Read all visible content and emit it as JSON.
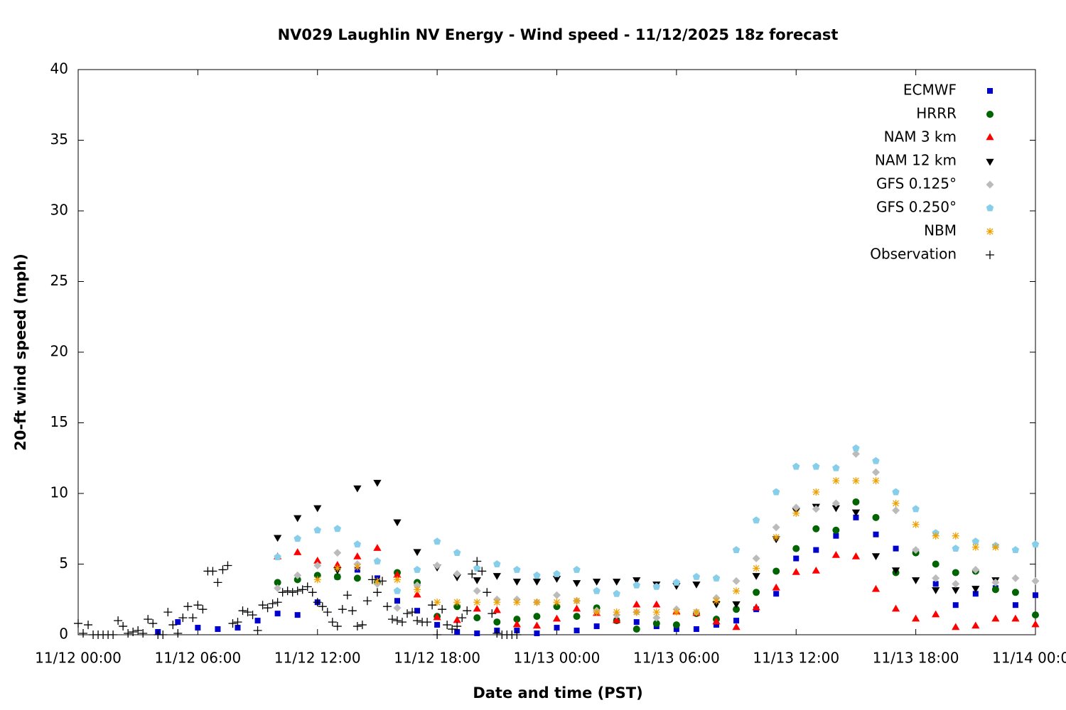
{
  "chart_data": {
    "type": "scatter",
    "title": "NV029 Laughlin NV Energy - Wind speed - 11/12/2025 18z forecast",
    "xlabel": "Date and time (PST)",
    "ylabel": "20-ft wind speed (mph)",
    "xlim": [
      0,
      48
    ],
    "ylim": [
      0,
      40
    ],
    "xticks": [
      {
        "value": 0,
        "label": "11/12 00:00"
      },
      {
        "value": 6,
        "label": "11/12 06:00"
      },
      {
        "value": 12,
        "label": "11/12 12:00"
      },
      {
        "value": 18,
        "label": "11/12 18:00"
      },
      {
        "value": 24,
        "label": "11/13 00:00"
      },
      {
        "value": 30,
        "label": "11/13 06:00"
      },
      {
        "value": 36,
        "label": "11/13 12:00"
      },
      {
        "value": 42,
        "label": "11/13 18:00"
      },
      {
        "value": 48,
        "label": "11/14 00:00"
      }
    ],
    "yticks": [
      0,
      5,
      10,
      15,
      20,
      25,
      30,
      35,
      40
    ],
    "legend": "upper right",
    "series": [
      {
        "name": "ECMWF",
        "color": "#0000cc",
        "marker": "square",
        "x": [
          4,
          5,
          6,
          7,
          8,
          9,
          10,
          11,
          12,
          13,
          14,
          15,
          16,
          17,
          18,
          19,
          20,
          21,
          22,
          23,
          24,
          25,
          26,
          27,
          28,
          29,
          30,
          31,
          32,
          33,
          34,
          35,
          36,
          37,
          38,
          39,
          40,
          41,
          42,
          43,
          44,
          45,
          46,
          47,
          48
        ],
        "values": [
          0.2,
          0.9,
          0.5,
          0.4,
          0.5,
          1.0,
          1.5,
          1.4,
          2.3,
          4.1,
          4.6,
          4.0,
          2.4,
          1.7,
          0.7,
          0.2,
          0.1,
          0.3,
          0.3,
          0.1,
          0.5,
          0.3,
          0.6,
          1.0,
          0.9,
          0.6,
          0.4,
          0.4,
          0.7,
          1.0,
          1.8,
          2.9,
          5.4,
          6.0,
          7.0,
          8.3,
          7.1,
          6.1,
          5.9,
          3.6,
          2.1,
          2.9,
          3.3,
          2.1,
          2.8
        ]
      },
      {
        "name": "HRRR",
        "color": "#006400",
        "marker": "circle",
        "x": [
          10,
          11,
          12,
          13,
          14,
          15,
          16,
          17,
          18,
          19,
          20,
          21,
          22,
          23,
          24,
          25,
          26,
          27,
          28,
          29,
          30,
          31,
          32,
          33,
          34,
          35,
          36,
          37,
          38,
          39,
          40,
          41,
          42,
          43,
          44,
          45,
          46,
          47,
          48
        ],
        "values": [
          3.7,
          3.9,
          4.2,
          4.1,
          4.0,
          3.7,
          4.4,
          3.7,
          1.3,
          2.0,
          1.2,
          0.9,
          1.1,
          1.3,
          2.0,
          1.3,
          1.9,
          1.0,
          0.4,
          0.8,
          0.7,
          1.5,
          1.1,
          1.8,
          3.0,
          4.5,
          6.1,
          7.5,
          7.4,
          9.4,
          8.3,
          4.4,
          5.8,
          5.0,
          4.4,
          4.5,
          3.2,
          3.0,
          1.4
        ]
      },
      {
        "name": "NAM 3 km",
        "color": "#ff0000",
        "marker": "triangle-up",
        "x": [
          10,
          11,
          12,
          13,
          14,
          15,
          16,
          17,
          18,
          19,
          20,
          21,
          22,
          23,
          24,
          25,
          26,
          27,
          28,
          29,
          30,
          31,
          32,
          33,
          34,
          35,
          36,
          37,
          38,
          39,
          40,
          41,
          42,
          43,
          44,
          45,
          46,
          47,
          48
        ],
        "values": [
          5.5,
          5.8,
          5.2,
          4.9,
          5.5,
          6.1,
          4.2,
          2.8,
          1.2,
          1.0,
          1.8,
          1.7,
          0.7,
          0.6,
          1.1,
          1.8,
          1.5,
          1.0,
          2.1,
          2.1,
          1.6,
          1.5,
          0.9,
          0.5,
          1.9,
          3.3,
          4.4,
          4.5,
          5.6,
          5.5,
          3.2,
          1.8,
          1.1,
          1.4,
          0.5,
          0.6,
          1.1,
          1.1,
          0.7
        ]
      },
      {
        "name": "NAM 12 km",
        "color": "#000000",
        "marker": "triangle-down",
        "x": [
          10,
          11,
          12,
          13,
          14,
          15,
          16,
          17,
          18,
          19,
          20,
          21,
          22,
          23,
          24,
          25,
          26,
          27,
          28,
          29,
          30,
          31,
          32,
          33,
          34,
          35,
          36,
          37,
          38,
          39,
          40,
          41,
          42,
          43,
          44,
          45,
          46,
          47,
          48
        ],
        "values": [
          6.9,
          8.3,
          9.0,
          4.6,
          10.4,
          10.8,
          8.0,
          5.9,
          4.8,
          4.1,
          3.9,
          4.2,
          3.8,
          3.8,
          4.0,
          3.7,
          3.8,
          3.8,
          3.9,
          3.6,
          3.5,
          3.6,
          2.2,
          2.2,
          4.2,
          6.8,
          8.8,
          9.1,
          9.0,
          8.7,
          5.6,
          4.6,
          3.9,
          3.2,
          3.2,
          3.3,
          3.9,
          null,
          null
        ]
      },
      {
        "name": "GFS 0.125°",
        "color": "#bbbbbb",
        "marker": "diamond",
        "x": [
          10,
          11,
          12,
          13,
          14,
          15,
          16,
          17,
          18,
          19,
          20,
          21,
          22,
          23,
          24,
          25,
          26,
          27,
          28,
          29,
          30,
          31,
          32,
          33,
          34,
          35,
          36,
          37,
          38,
          39,
          40,
          41,
          42,
          43,
          44,
          45,
          46,
          47,
          48
        ],
        "values": [
          3.3,
          4.2,
          4.9,
          5.8,
          5.0,
          3.6,
          1.9,
          3.5,
          4.9,
          4.3,
          3.1,
          2.5,
          2.5,
          2.3,
          2.8,
          2.4,
          1.7,
          1.4,
          1.6,
          1.2,
          1.8,
          1.6,
          2.6,
          3.8,
          5.4,
          7.6,
          9.0,
          8.9,
          9.3,
          12.8,
          11.5,
          8.8,
          6.0,
          4.0,
          3.6,
          4.6,
          3.7,
          4.0,
          3.8
        ]
      },
      {
        "name": "GFS 0.250°",
        "color": "#87ceeb",
        "marker": "pentagon",
        "x": [
          10,
          11,
          12,
          13,
          14,
          15,
          16,
          17,
          18,
          19,
          20,
          21,
          22,
          23,
          24,
          25,
          26,
          27,
          28,
          29,
          30,
          31,
          32,
          33,
          34,
          35,
          36,
          37,
          38,
          39,
          40,
          41,
          42,
          43,
          44,
          45,
          46,
          47,
          48
        ],
        "values": [
          5.5,
          6.8,
          7.4,
          7.5,
          6.4,
          5.2,
          3.1,
          4.6,
          6.6,
          5.8,
          4.7,
          5.0,
          4.6,
          4.2,
          4.3,
          4.6,
          3.1,
          2.9,
          3.5,
          3.4,
          3.7,
          4.1,
          4.0,
          6.0,
          8.1,
          10.1,
          11.9,
          11.9,
          11.8,
          13.2,
          12.3,
          10.1,
          8.9,
          7.2,
          6.1,
          6.6,
          6.3,
          6.0,
          6.4
        ]
      },
      {
        "name": "NBM",
        "color": "#f0a000",
        "marker": "asterisk",
        "x": [
          10,
          11,
          12,
          13,
          14,
          15,
          16,
          17,
          18,
          19,
          20,
          21,
          22,
          23,
          24,
          25,
          26,
          27,
          28,
          29,
          30,
          31,
          32,
          33,
          34,
          35,
          36,
          37,
          38,
          39,
          40,
          41,
          42,
          43,
          44,
          45,
          46,
          47,
          48
        ],
        "values": [
          null,
          null,
          3.9,
          4.7,
          4.8,
          3.8,
          3.9,
          3.2,
          2.3,
          2.3,
          2.3,
          2.3,
          2.3,
          2.3,
          2.3,
          2.4,
          1.6,
          1.6,
          1.6,
          1.6,
          1.6,
          1.6,
          2.4,
          3.1,
          4.7,
          6.9,
          8.6,
          10.1,
          10.9,
          10.9,
          10.9,
          9.3,
          7.8,
          7.0,
          7.0,
          6.2,
          6.2,
          null,
          null
        ]
      },
      {
        "name": "Observation",
        "color": "#000000",
        "marker": "plus",
        "x": [
          0,
          0.25,
          0.5,
          0.75,
          1,
          1.25,
          1.5,
          1.75,
          2,
          2.25,
          2.5,
          2.75,
          3,
          3.25,
          3.5,
          3.75,
          4,
          4.25,
          4.5,
          4.75,
          5,
          5.25,
          5.5,
          5.75,
          6,
          6.25,
          6.5,
          6.75,
          7,
          7.25,
          7.5,
          7.75,
          8,
          8.25,
          8.5,
          8.75,
          9,
          9.25,
          9.5,
          9.75,
          10,
          10.25,
          10.5,
          10.75,
          11,
          11.25,
          11.5,
          11.75,
          12,
          12.25,
          12.5,
          12.75,
          13,
          13.25,
          13.5,
          13.75,
          14,
          14.25,
          14.5,
          14.75,
          15,
          15.25,
          15.5,
          15.75,
          16,
          16.25,
          16.5,
          16.75,
          17,
          17.25,
          17.5,
          17.75,
          18,
          18.25,
          18.5,
          18.75,
          19,
          19.25,
          19.5,
          19.75,
          20,
          20.25,
          20.5,
          20.75,
          21,
          21.25,
          21.5,
          21.75,
          22
        ],
        "values": [
          0.8,
          0.1,
          0.7,
          0.0,
          0.0,
          0.0,
          0.0,
          0.0,
          1.0,
          0.6,
          0.1,
          0.2,
          0.3,
          0.1,
          1.1,
          0.8,
          0.0,
          0.0,
          1.6,
          0.7,
          0.1,
          1.2,
          2.0,
          1.2,
          2.1,
          1.8,
          4.5,
          4.5,
          3.7,
          4.6,
          4.9,
          0.8,
          0.9,
          1.7,
          1.6,
          1.4,
          0.3,
          2.1,
          1.9,
          2.2,
          2.3,
          3.0,
          3.1,
          3.0,
          3.1,
          3.2,
          3.4,
          3.0,
          2.3,
          2.0,
          1.6,
          0.9,
          0.6,
          1.8,
          2.8,
          1.7,
          0.6,
          0.7,
          2.4,
          3.9,
          3.0,
          3.8,
          2.0,
          1.1,
          1.0,
          0.9,
          1.5,
          1.6,
          1.0,
          0.9,
          0.9,
          2.1,
          0.0,
          1.8,
          0.7,
          0.4,
          0.6,
          1.2,
          1.7,
          4.3,
          5.2,
          4.5,
          3.0,
          1.5,
          0.1,
          0.0,
          0.0,
          0.0,
          0.0
        ]
      }
    ]
  }
}
